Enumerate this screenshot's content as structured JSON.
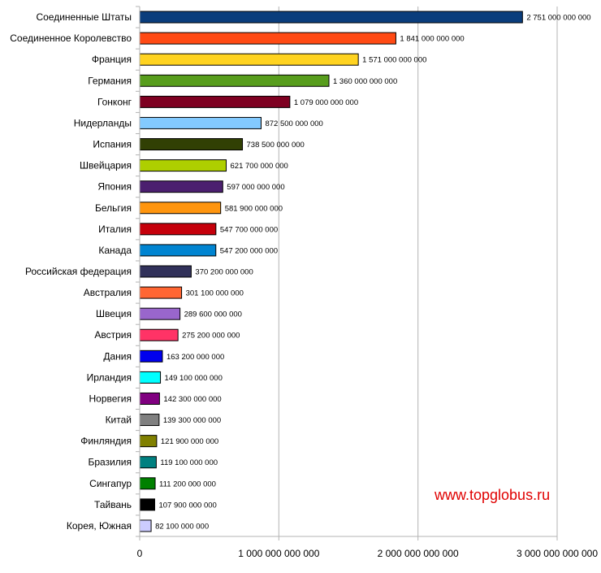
{
  "watermark": "www.topglobus.ru",
  "chart_data": {
    "type": "bar",
    "orientation": "horizontal",
    "categories": [
      "Соединенные Штаты",
      "Соединенное Королевство",
      "Франция",
      "Германия",
      "Гонконг",
      "Нидерланды",
      "Испания",
      "Швейцария",
      "Япония",
      "Бельгия",
      "Италия",
      "Канада",
      "Российская федерация",
      "Австралия",
      "Швеция",
      "Австрия",
      "Дания",
      "Ирландия",
      "Норвегия",
      "Китай",
      "Финляндия",
      "Бразилия",
      "Сингапур",
      "Тайвань",
      "Корея, Южная"
    ],
    "values": [
      2751000000000,
      1841000000000,
      1571000000000,
      1360000000000,
      1079000000000,
      872500000000,
      738500000000,
      621700000000,
      597000000000,
      581900000000,
      547700000000,
      547200000000,
      370200000000,
      301100000000,
      289600000000,
      275200000000,
      163200000000,
      149100000000,
      142300000000,
      139300000000,
      121900000000,
      119100000000,
      111200000000,
      107900000000,
      82100000000
    ],
    "value_labels": [
      "2 751 000 000 000",
      "1 841 000 000 000",
      "1 571 000 000 000",
      "1 360 000 000 000",
      "1 079 000 000 000",
      "872 500 000 000",
      "738 500 000 000",
      "621 700 000 000",
      "597 000 000 000",
      "581 900 000 000",
      "547 700 000 000",
      "547 200 000 000",
      "370 200 000 000",
      "301 100 000 000",
      "289 600 000 000",
      "275 200 000 000",
      "163 200 000 000",
      "149 100 000 000",
      "142 300 000 000",
      "139 300 000 000",
      "121 900 000 000",
      "119 100 000 000",
      "111 200 000 000",
      "107 900 000 000",
      "82 100 000 000"
    ],
    "colors": [
      "#0a3d7c",
      "#ff4a14",
      "#ffd320",
      "#579d1c",
      "#7e0021",
      "#83caff",
      "#314004",
      "#aecf00",
      "#4b1f6f",
      "#ff950e",
      "#c5000b",
      "#0084d1",
      "#31315a",
      "#ff6633",
      "#9966cc",
      "#ff3366",
      "#0000ee",
      "#00ffff",
      "#800080",
      "#808080",
      "#808000",
      "#008080",
      "#008000",
      "#000000",
      "#ccccff"
    ],
    "x_ticks": [
      0,
      1000000000000,
      2000000000000,
      3000000000000
    ],
    "x_tick_labels": [
      "0",
      "1 000 000 000 000",
      "2 000 000 000 000",
      "3 000 000 000 000"
    ],
    "xlim": [
      0,
      3000000000000
    ],
    "grid": true,
    "legend": false
  }
}
